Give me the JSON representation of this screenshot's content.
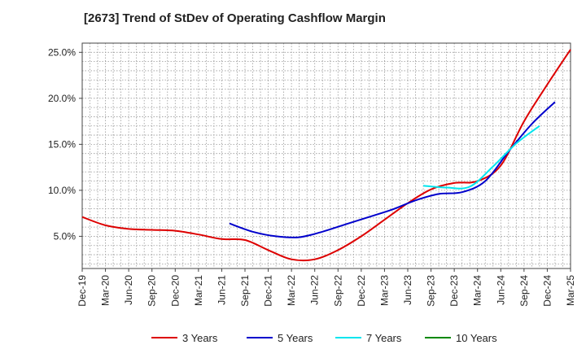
{
  "chart_data": {
    "type": "line",
    "title": "[2673]  Trend of StDev of Operating Cashflow Margin",
    "ylim": [
      1.5,
      26.0
    ],
    "yticks": [
      5.0,
      10.0,
      15.0,
      20.0,
      25.0
    ],
    "ytick_labels": [
      "5.0%",
      "10.0%",
      "15.0%",
      "20.0%",
      "25.0%"
    ],
    "xticks": [
      "Dec-19",
      "Mar-20",
      "Jun-20",
      "Sep-20",
      "Dec-20",
      "Mar-21",
      "Jun-21",
      "Sep-21",
      "Dec-21",
      "Mar-22",
      "Jun-22",
      "Sep-22",
      "Dec-22",
      "Mar-23",
      "Jun-23",
      "Sep-23",
      "Dec-23",
      "Mar-24",
      "Jun-24",
      "Sep-24",
      "Dec-24",
      "Mar-25"
    ],
    "grid": true,
    "legend_position": "bottom",
    "series": [
      {
        "name": "3 Years",
        "color": "#dd0000",
        "start_index": 0,
        "values": [
          7.1,
          6.2,
          5.8,
          5.7,
          5.6,
          5.2,
          4.7,
          4.6,
          3.5,
          2.5,
          2.5,
          3.5,
          5.0,
          6.8,
          8.6,
          10.1,
          10.8,
          11.0,
          12.7,
          17.5,
          21.5,
          25.3
        ]
      },
      {
        "name": "5 Years",
        "color": "#0000cc",
        "start_index": 6.33,
        "values": [
          6.4,
          5.5,
          5.0,
          4.9,
          5.5,
          6.3,
          7.1,
          7.9,
          8.9,
          9.6,
          9.8,
          11.0,
          14.2,
          17.2,
          19.6
        ]
      },
      {
        "name": "7 Years",
        "color": "#00e5ee",
        "start_index": 14.67,
        "values": [
          10.5,
          10.3,
          10.4,
          12.6,
          15.1,
          17.0
        ]
      },
      {
        "name": "10 Years",
        "color": "#008800",
        "start_index": 0,
        "values": []
      }
    ]
  }
}
